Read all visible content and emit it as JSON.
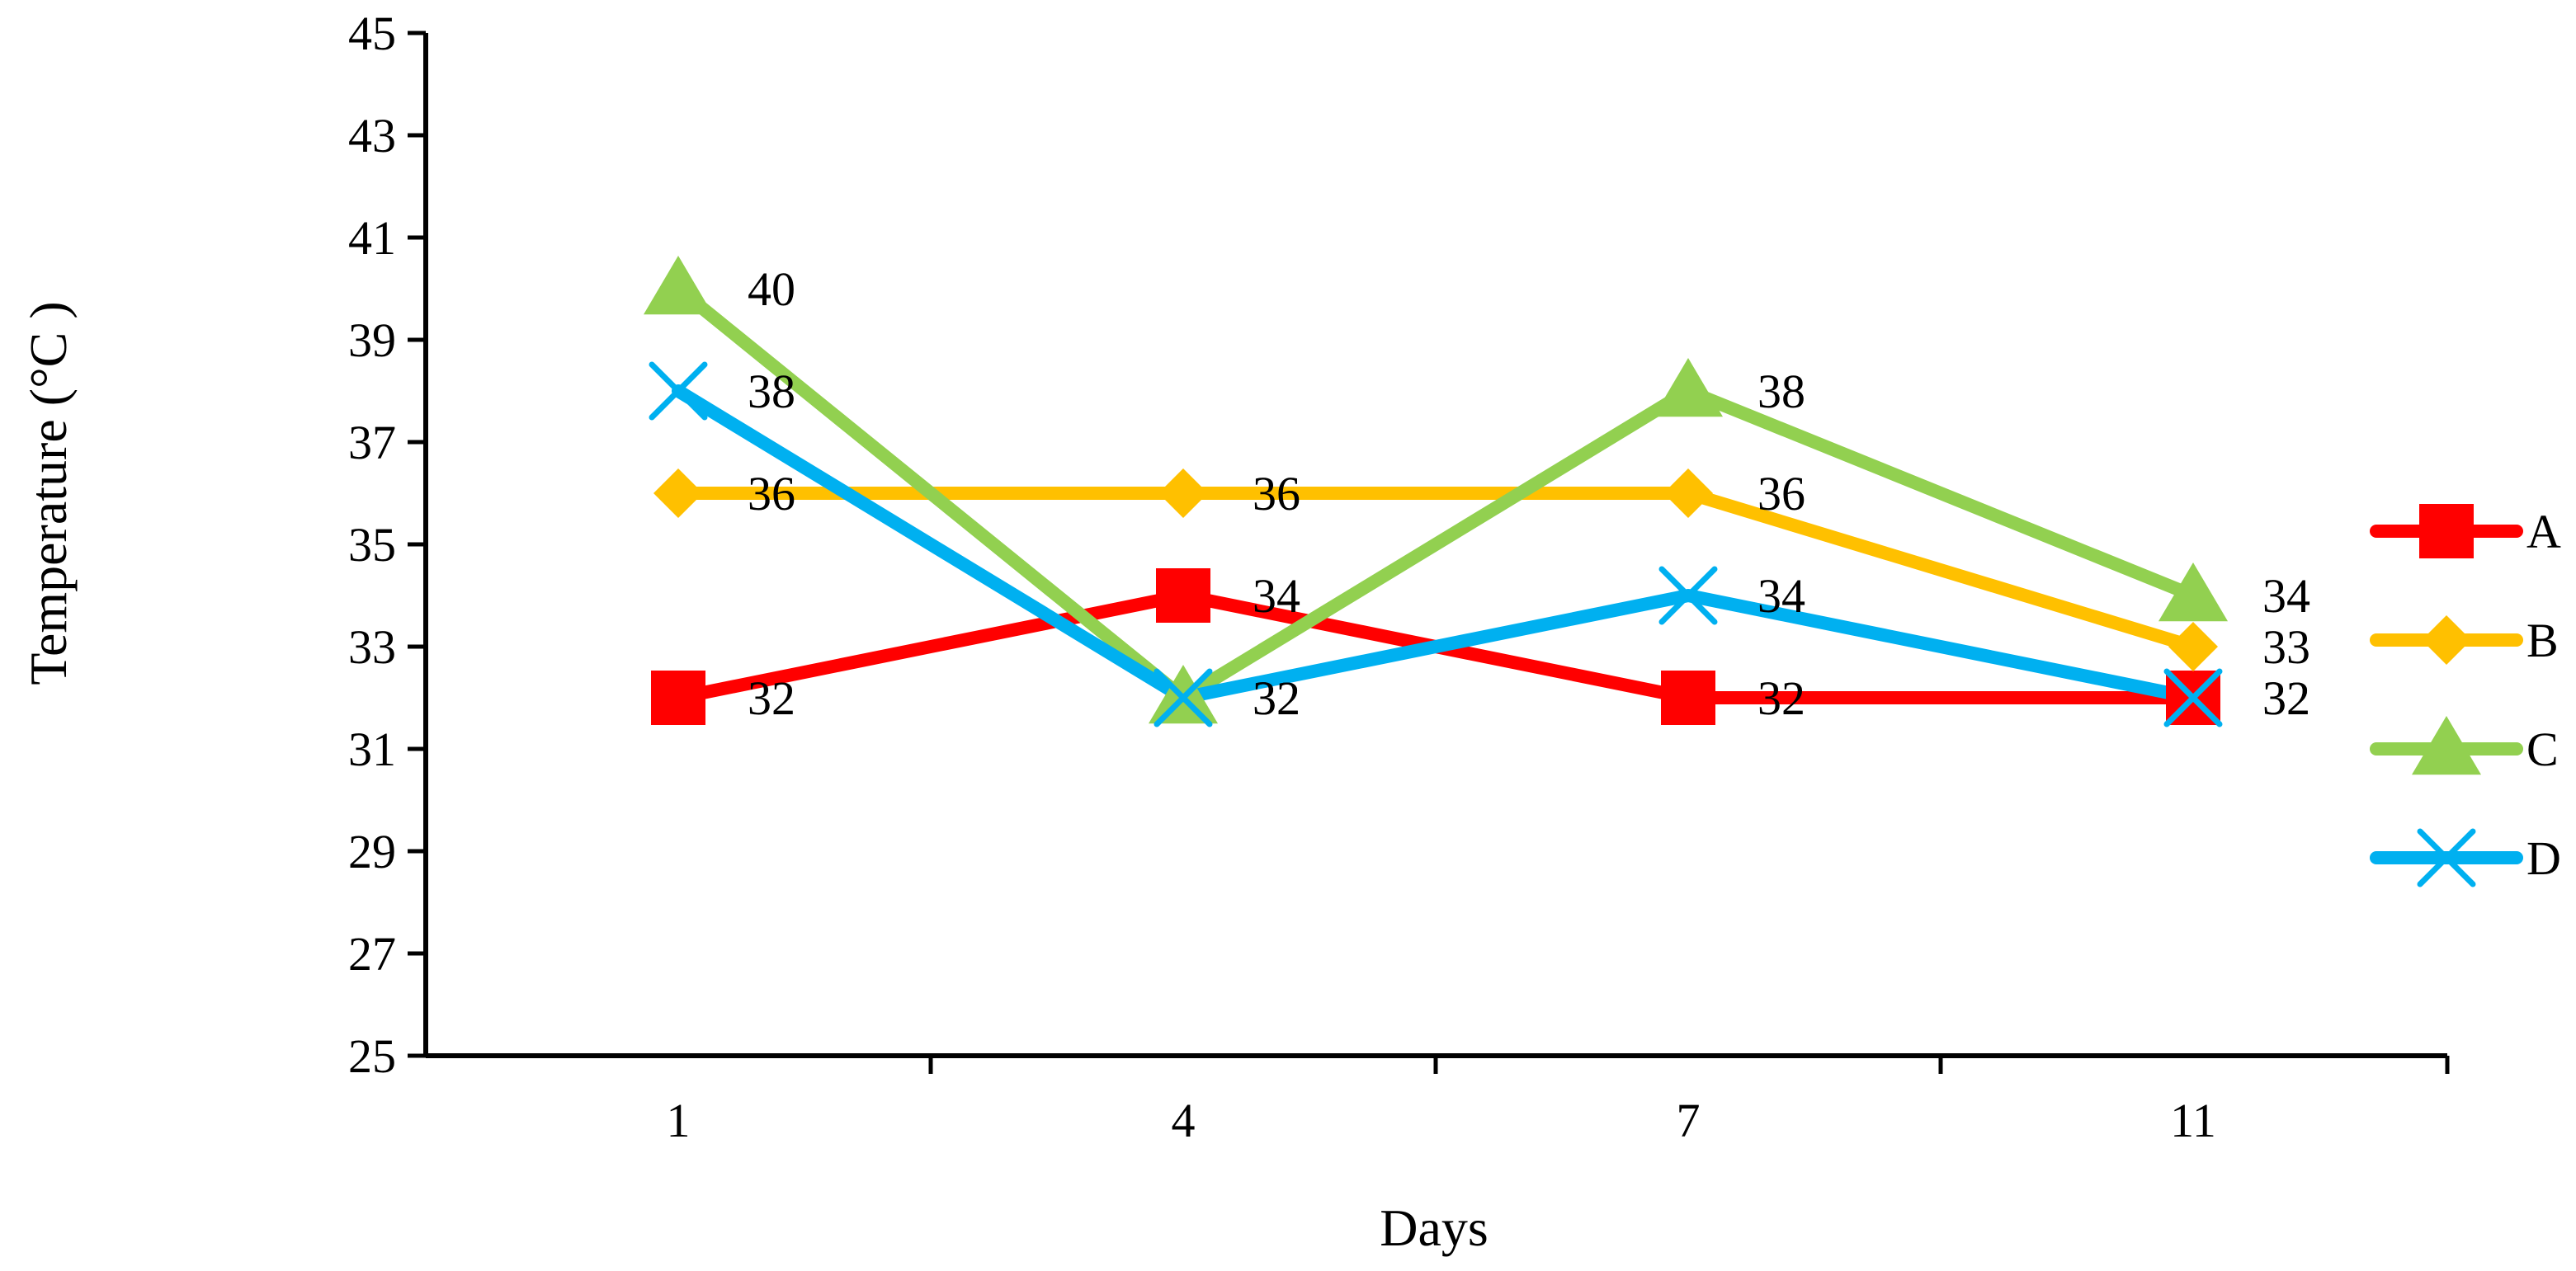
{
  "chart_data": {
    "type": "line",
    "title": "",
    "xlabel": "Days",
    "ylabel": "Temperature (°C )",
    "categories": [
      "1",
      "4",
      "7",
      "11"
    ],
    "ylim": [
      25,
      45
    ],
    "yticks": [
      "25",
      "27",
      "29",
      "31",
      "33",
      "35",
      "37",
      "39",
      "41",
      "43",
      "45"
    ],
    "legend_position": "right",
    "series": [
      {
        "name": "A",
        "color": "#FF0000",
        "marker": "square",
        "values": [
          32,
          34,
          32,
          32
        ],
        "labels": [
          "32",
          "34",
          "32",
          "32"
        ]
      },
      {
        "name": "B",
        "color": "#FFC000",
        "marker": "diamond",
        "values": [
          36,
          36,
          36,
          33
        ],
        "labels": [
          "36",
          "36",
          "36",
          "33"
        ]
      },
      {
        "name": "C",
        "color": "#92D050",
        "marker": "triangle",
        "values": [
          40,
          32,
          38,
          34
        ],
        "labels": [
          "40",
          "32",
          "38",
          "34"
        ]
      },
      {
        "name": "D",
        "color": "#00B0F0",
        "marker": "x",
        "values": [
          38,
          32,
          34,
          32
        ],
        "labels": [
          "38",
          "32",
          "34",
          "32"
        ]
      }
    ]
  }
}
